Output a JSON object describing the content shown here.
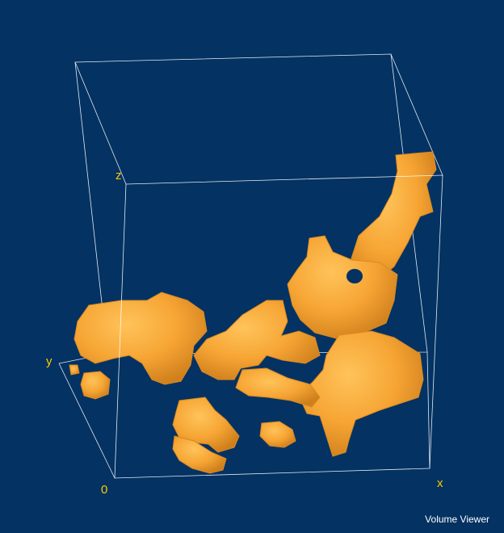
{
  "app": {
    "title": "Volume Viewer"
  },
  "axes": {
    "z": "z",
    "y": "y",
    "origin": "0",
    "x": "x"
  },
  "colors": {
    "background": "#033263",
    "bounding_box": "#ffffff",
    "axis_label": "#ffcc00",
    "isosurface": "#f6a534",
    "isosurface_shade": "#d98a22"
  },
  "render": {
    "type": "3d-isosurface",
    "bounding_box_visible": true
  }
}
